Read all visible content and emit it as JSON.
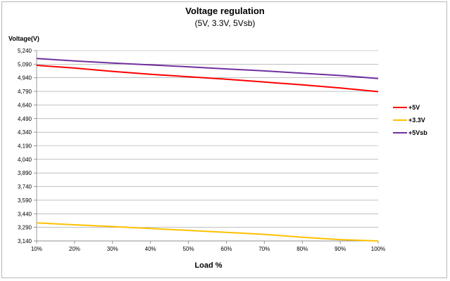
{
  "chart_data": {
    "type": "line",
    "title": "Voltage regulation",
    "subtitle": "(5V, 3.3V, 5Vsb)",
    "xlabel": "Load %",
    "ylabel": "Voltage(V)",
    "categories": [
      "10%",
      "20%",
      "30%",
      "40%",
      "50%",
      "60%",
      "70%",
      "80%",
      "90%",
      "100%"
    ],
    "y_ticks": [
      "3,140",
      "3,290",
      "3,440",
      "3,590",
      "3,740",
      "3,890",
      "4,040",
      "4,190",
      "4,340",
      "4,490",
      "4,640",
      "4,790",
      "4,940",
      "5,090",
      "5,240"
    ],
    "ylim": [
      3.14,
      5.24
    ],
    "grid": true,
    "legend_position": "right",
    "series": [
      {
        "name": "+5V",
        "color": "#ff0000",
        "values": [
          5.077,
          5.047,
          5.011,
          4.978,
          4.952,
          4.925,
          4.893,
          4.862,
          4.828,
          4.787
        ]
      },
      {
        "name": "+3.3V",
        "color": "#ffc000",
        "values": [
          3.34,
          3.318,
          3.299,
          3.278,
          3.256,
          3.235,
          3.213,
          3.181,
          3.155,
          3.14
        ]
      },
      {
        "name": "+5Vsb",
        "color": "#7030a0",
        "values": [
          5.153,
          5.125,
          5.103,
          5.082,
          5.061,
          5.038,
          5.016,
          4.99,
          4.965,
          4.932
        ]
      }
    ]
  }
}
